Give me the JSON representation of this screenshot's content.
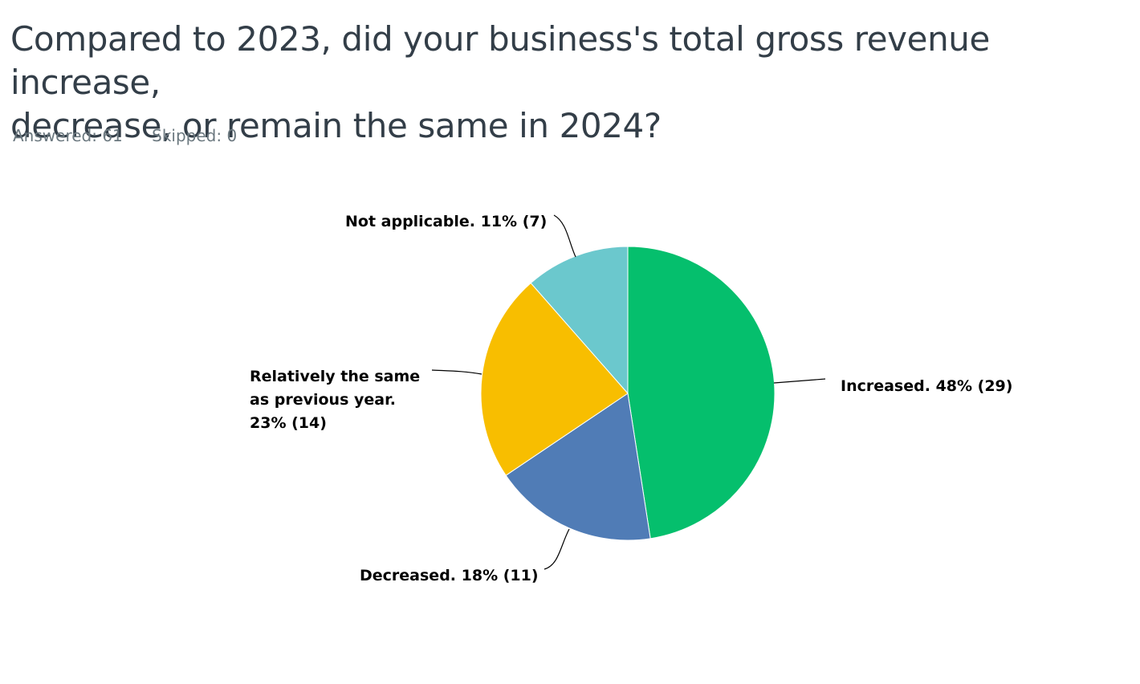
{
  "question": {
    "title_line1": "Compared to 2023, did your business's total gross revenue increase,",
    "title_line2": "decrease, or remain the same in 2024?"
  },
  "stats": {
    "answered": "Answered: 61",
    "skipped": "Skipped: 0"
  },
  "chart_data": {
    "type": "pie",
    "title": "",
    "start": "12 o'clock, clockwise",
    "slices": [
      {
        "category": "Increased.",
        "percent": 48,
        "count": 29,
        "color": "#05bf6d",
        "label_lines": [
          "Increased.  48% (29)"
        ],
        "label_side": "right"
      },
      {
        "category": "Decreased.",
        "percent": 18,
        "count": 11,
        "color": "#507cb6",
        "label_lines": [
          "Decreased.  18% (11)"
        ],
        "label_side": "bottom-left"
      },
      {
        "category": "Relatively the same as previous year.",
        "percent": 23,
        "count": 14,
        "color": "#f8be00",
        "label_lines": [
          "Relatively the same",
          "as previous year.",
          "23% (14)"
        ],
        "label_side": "left"
      },
      {
        "category": "Not applicable.",
        "percent": 11,
        "count": 7,
        "color": "#6bc8cd",
        "label_lines": [
          "Not applicable. 11% (7)"
        ],
        "label_side": "top-left"
      }
    ]
  }
}
